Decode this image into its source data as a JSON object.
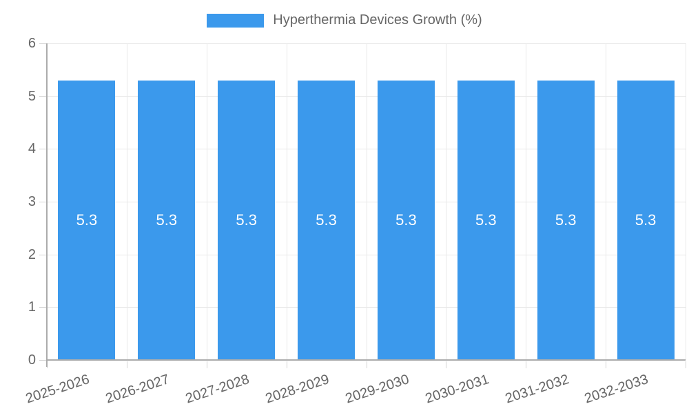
{
  "legend": {
    "label": "Hyperthermia Devices Growth (%)"
  },
  "chart_data": {
    "type": "bar",
    "title": "Hyperthermia Devices Growth (%)",
    "categories": [
      "2025-2026",
      "2026-2027",
      "2027-2028",
      "2028-2029",
      "2029-2030",
      "2030-2031",
      "2031-2032",
      "2032-2033"
    ],
    "values": [
      5.3,
      5.3,
      5.3,
      5.3,
      5.3,
      5.3,
      5.3,
      5.3
    ],
    "value_labels": [
      "5.3",
      "5.3",
      "5.3",
      "5.3",
      "5.3",
      "5.3",
      "5.3",
      "5.3"
    ],
    "series": [
      {
        "name": "Hyperthermia Devices Growth (%)",
        "values": [
          5.3,
          5.3,
          5.3,
          5.3,
          5.3,
          5.3,
          5.3,
          5.3
        ]
      }
    ],
    "xlabel": "",
    "ylabel": "",
    "ylim": [
      0,
      6
    ],
    "yticks": [
      0,
      1,
      2,
      3,
      4,
      5,
      6
    ],
    "grid": true,
    "legend_position": "top",
    "bar_label_position": "center",
    "colors": {
      "bar": "#3B99EC",
      "grid": "#e8e8e8",
      "axis": "#acacac",
      "tick": "#d4d4d4",
      "label_text": "#666666",
      "bar_label": "#ffffff"
    }
  }
}
